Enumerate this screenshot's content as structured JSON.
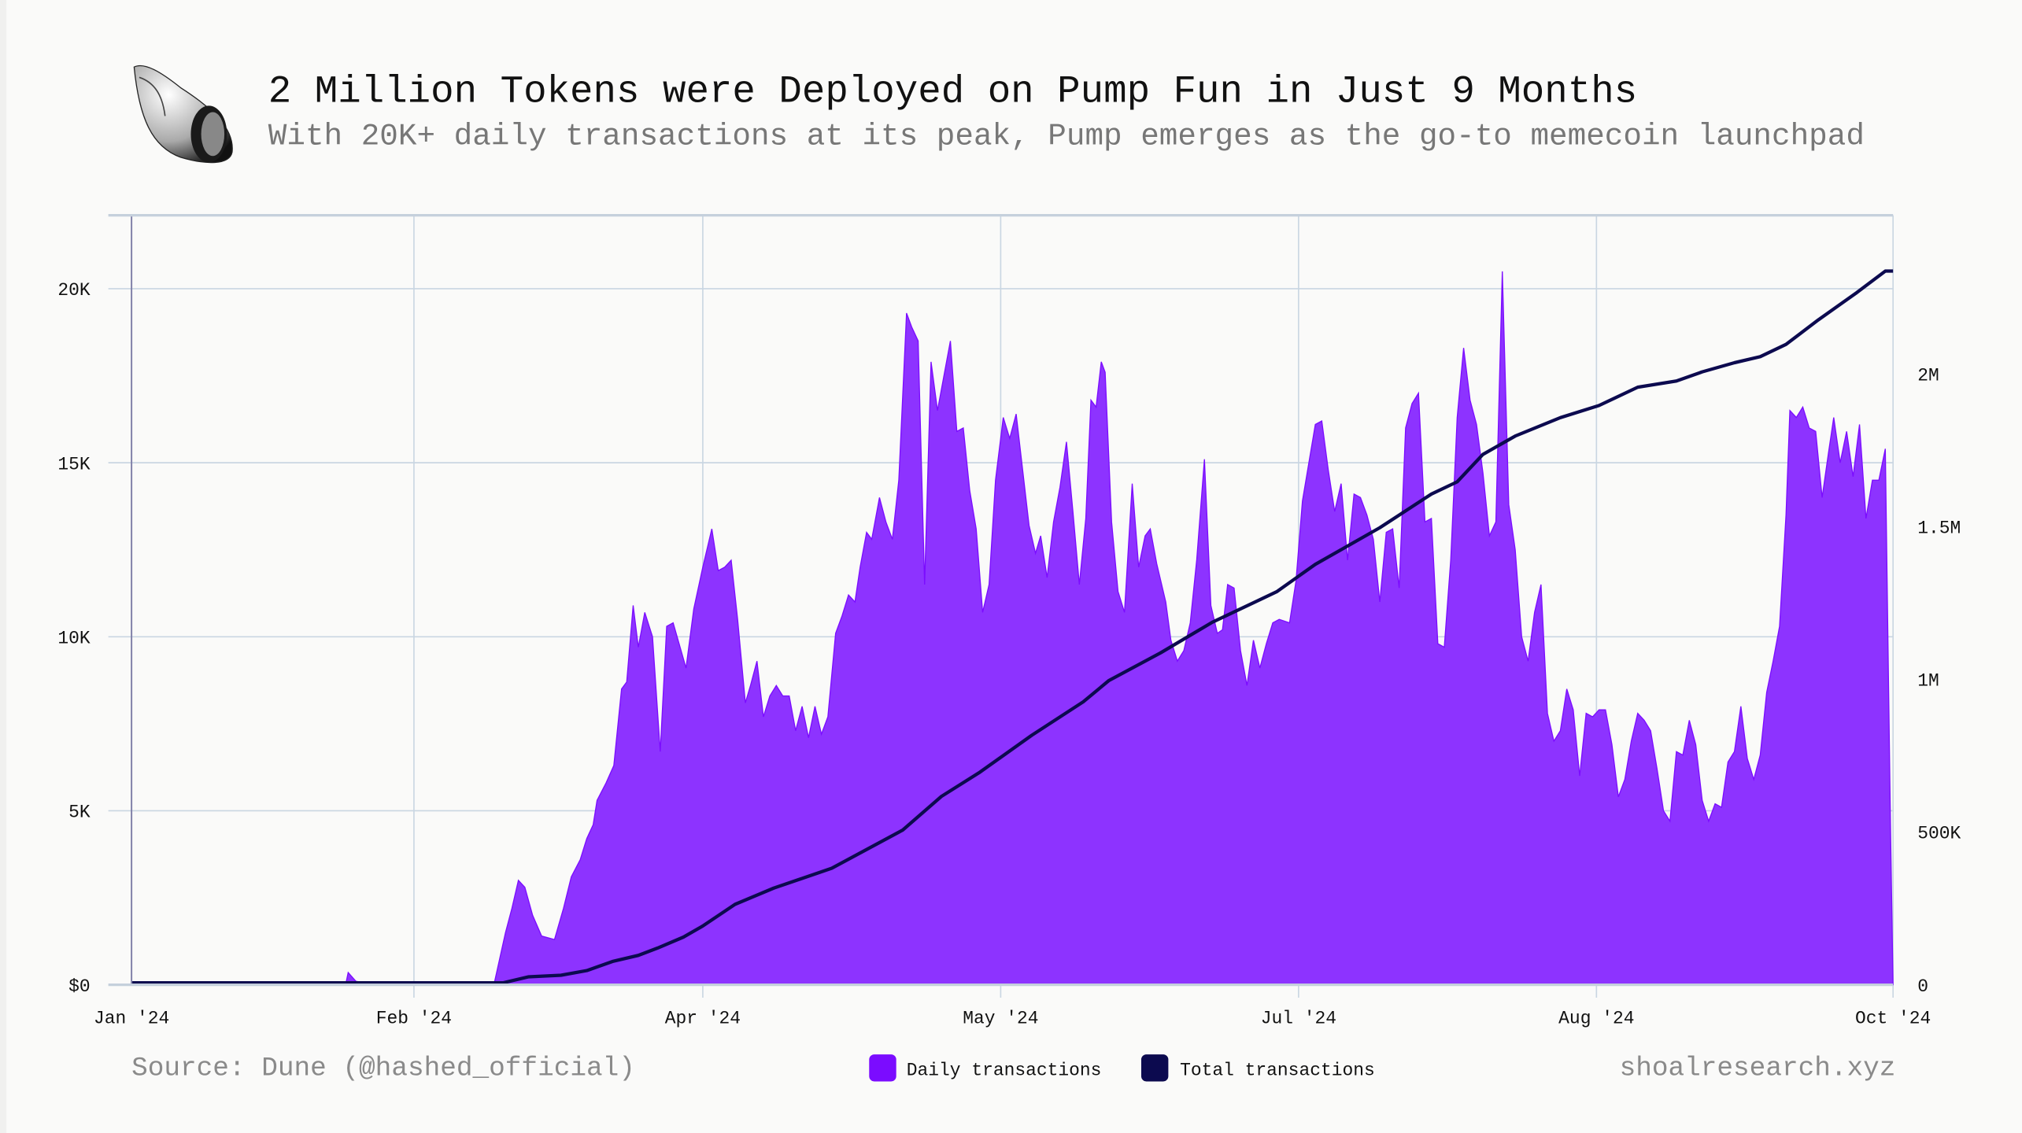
{
  "header": {
    "title": "2 Million Tokens were Deployed on Pump Fun in Just 9 Months",
    "subtitle": "With 20K+ daily transactions at its peak, Pump emerges as the go-to memecoin launchpad",
    "logo_icon": "seashell-icon"
  },
  "footer": {
    "source": "Source: Dune (@hashed_official)",
    "brand": "shoalresearch.xyz"
  },
  "chart_data": {
    "type": "area",
    "title": "2 Million Tokens were Deployed on Pump Fun in Just 9 Months",
    "x_unit": "days since Jan 1 2024",
    "xlim": [
      0,
      273.2
    ],
    "x_ticks": [
      {
        "label": "Jan '24",
        "day": 0
      },
      {
        "label": "Feb '24",
        "day": 43.8
      },
      {
        "label": "Apr '24",
        "day": 88.6
      },
      {
        "label": "May '24",
        "day": 134.8
      },
      {
        "label": "Jul '24",
        "day": 181
      },
      {
        "label": "Aug '24",
        "day": 227.2
      },
      {
        "label": "Oct '24",
        "day": 273.2
      }
    ],
    "y_left": {
      "ylim": [
        0,
        22
      ],
      "unit": "K",
      "ticks": [
        {
          "label": "$0",
          "value": 0
        },
        {
          "label": "5K",
          "value": 5
        },
        {
          "label": "10K",
          "value": 10
        },
        {
          "label": "15K",
          "value": 15
        },
        {
          "label": "20K",
          "value": 20
        }
      ]
    },
    "y_right": {
      "unit": "M",
      "ticks": [
        {
          "label": "0",
          "value": 0
        },
        {
          "label": "500K",
          "value": 0.5
        },
        {
          "label": "1M",
          "value": 1
        },
        {
          "label": "1.5M",
          "value": 1.5
        },
        {
          "label": "2M",
          "value": 2
        }
      ]
    },
    "legend": [
      {
        "label": "Daily transactions",
        "color": "#7b0cff"
      },
      {
        "label": "Total transactions",
        "color": "#0c0a4f"
      }
    ],
    "legend_position": "bottom-center",
    "grid": true,
    "series": [
      {
        "name": "Daily transactions",
        "axis": "left",
        "type": "area",
        "color": "#8d33ff",
        "points": [
          [
            0,
            0
          ],
          [
            33.2,
            0
          ],
          [
            33.6,
            0.35
          ],
          [
            34.8,
            0.1
          ],
          [
            37.6,
            0
          ],
          [
            56.2,
            0
          ],
          [
            56.8,
            0.5
          ],
          [
            58,
            1.5
          ],
          [
            59,
            2.2
          ],
          [
            60,
            3.0
          ],
          [
            61,
            2.8
          ],
          [
            62.2,
            2.0
          ],
          [
            63.6,
            1.4
          ],
          [
            65.6,
            1.3
          ],
          [
            67,
            2.2
          ],
          [
            68.2,
            3.1
          ],
          [
            69.6,
            3.6
          ],
          [
            70.6,
            4.2
          ],
          [
            71.6,
            4.6
          ],
          [
            72.2,
            5.3
          ],
          [
            73.6,
            5.8
          ],
          [
            74.8,
            6.3
          ],
          [
            76,
            8.5
          ],
          [
            76.8,
            8.7
          ],
          [
            77.8,
            10.9
          ],
          [
            78.6,
            9.7
          ],
          [
            79.6,
            10.7
          ],
          [
            80.8,
            10.0
          ],
          [
            82,
            6.7
          ],
          [
            83,
            10.3
          ],
          [
            84,
            10.4
          ],
          [
            86,
            9.1
          ],
          [
            87.2,
            10.8
          ],
          [
            88.6,
            12.0
          ],
          [
            90,
            13.1
          ],
          [
            91,
            11.9
          ],
          [
            92,
            12.0
          ],
          [
            93,
            12.2
          ],
          [
            94,
            10.5
          ],
          [
            95.2,
            8.1
          ],
          [
            96,
            8.6
          ],
          [
            97,
            9.3
          ],
          [
            98,
            7.7
          ],
          [
            99,
            8.3
          ],
          [
            100,
            8.6
          ],
          [
            101,
            8.3
          ],
          [
            102,
            8.3
          ],
          [
            103,
            7.3
          ],
          [
            104,
            8.0
          ],
          [
            105,
            7.1
          ],
          [
            106,
            8.0
          ],
          [
            107,
            7.2
          ],
          [
            108,
            7.7
          ],
          [
            109.2,
            10.1
          ],
          [
            110.2,
            10.6
          ],
          [
            111.2,
            11.2
          ],
          [
            112.2,
            11.0
          ],
          [
            113,
            12.0
          ],
          [
            114,
            13.0
          ],
          [
            114.8,
            12.8
          ],
          [
            116,
            14.0
          ],
          [
            117,
            13.3
          ],
          [
            118,
            12.8
          ],
          [
            119,
            14.5
          ],
          [
            120.2,
            19.3
          ],
          [
            121,
            18.9
          ],
          [
            122,
            18.5
          ],
          [
            123,
            11.5
          ],
          [
            124,
            17.9
          ],
          [
            125,
            16.5
          ],
          [
            126,
            17.5
          ],
          [
            127,
            18.5
          ],
          [
            128,
            15.9
          ],
          [
            129,
            16.0
          ],
          [
            130,
            14.2
          ],
          [
            131,
            13.1
          ],
          [
            132,
            10.7
          ],
          [
            133,
            11.5
          ],
          [
            134,
            14.5
          ],
          [
            135.2,
            16.3
          ],
          [
            136.2,
            15.7
          ],
          [
            137.2,
            16.4
          ],
          [
            138.2,
            14.8
          ],
          [
            139.2,
            13.2
          ],
          [
            140.2,
            12.4
          ],
          [
            141,
            12.9
          ],
          [
            142,
            11.7
          ],
          [
            143,
            13.3
          ],
          [
            144,
            14.3
          ],
          [
            145,
            15.6
          ],
          [
            146,
            13.6
          ],
          [
            147,
            11.5
          ],
          [
            148,
            13.4
          ],
          [
            148.8,
            16.8
          ],
          [
            149.6,
            16.6
          ],
          [
            150.4,
            17.9
          ],
          [
            151,
            17.6
          ],
          [
            152,
            13.3
          ],
          [
            153,
            11.3
          ],
          [
            154,
            10.7
          ],
          [
            155.2,
            14.4
          ],
          [
            156.2,
            12.0
          ],
          [
            157.2,
            12.9
          ],
          [
            158,
            13.1
          ],
          [
            159,
            12.1
          ],
          [
            160.4,
            11.0
          ],
          [
            161.2,
            9.9
          ],
          [
            162.2,
            9.3
          ],
          [
            163.2,
            9.6
          ],
          [
            164.2,
            10.4
          ],
          [
            165.2,
            12.2
          ],
          [
            166.4,
            15.1
          ],
          [
            167.4,
            10.9
          ],
          [
            168.4,
            10.1
          ],
          [
            169.2,
            10.2
          ],
          [
            170,
            11.5
          ],
          [
            171,
            11.4
          ],
          [
            172,
            9.6
          ],
          [
            173,
            8.6
          ],
          [
            174,
            9.9
          ],
          [
            175,
            9.1
          ],
          [
            176,
            9.8
          ],
          [
            177,
            10.4
          ],
          [
            178,
            10.5
          ],
          [
            179.6,
            10.4
          ],
          [
            180.6,
            11.6
          ],
          [
            181.6,
            13.9
          ],
          [
            182.6,
            15.0
          ],
          [
            183.6,
            16.1
          ],
          [
            184.6,
            16.2
          ],
          [
            185.6,
            14.8
          ],
          [
            186.6,
            13.6
          ],
          [
            187.6,
            14.4
          ],
          [
            188.6,
            12.2
          ],
          [
            189.6,
            14.1
          ],
          [
            190.6,
            14.0
          ],
          [
            191.6,
            13.5
          ],
          [
            192.6,
            12.8
          ],
          [
            193.6,
            11.0
          ],
          [
            194.6,
            13.0
          ],
          [
            195.6,
            13.1
          ],
          [
            196.6,
            11.4
          ],
          [
            197.6,
            16.0
          ],
          [
            198.6,
            16.7
          ],
          [
            199.6,
            17.0
          ],
          [
            200.6,
            13.3
          ],
          [
            201.6,
            13.4
          ],
          [
            202.6,
            9.8
          ],
          [
            203.6,
            9.7
          ],
          [
            204.6,
            12.2
          ],
          [
            205.6,
            16.3
          ],
          [
            206.6,
            18.3
          ],
          [
            207.6,
            16.8
          ],
          [
            208.6,
            16.1
          ],
          [
            209.6,
            14.7
          ],
          [
            210.6,
            12.9
          ],
          [
            211.6,
            13.3
          ],
          [
            212.6,
            20.5
          ],
          [
            213.6,
            13.8
          ],
          [
            214.6,
            12.5
          ],
          [
            215.6,
            10.0
          ],
          [
            216.6,
            9.3
          ],
          [
            217.6,
            10.7
          ],
          [
            218.6,
            11.5
          ],
          [
            219.6,
            7.8
          ],
          [
            220.6,
            7.0
          ],
          [
            221.6,
            7.3
          ],
          [
            222.6,
            8.5
          ],
          [
            223.6,
            7.9
          ],
          [
            224.6,
            6.0
          ],
          [
            225.6,
            7.8
          ],
          [
            226.6,
            7.7
          ],
          [
            227.6,
            7.9
          ],
          [
            228.6,
            7.9
          ],
          [
            229.6,
            6.9
          ],
          [
            230.6,
            5.4
          ],
          [
            231.6,
            5.9
          ],
          [
            232.6,
            7.0
          ],
          [
            233.6,
            7.8
          ],
          [
            234.6,
            7.6
          ],
          [
            235.6,
            7.3
          ],
          [
            236.6,
            6.2
          ],
          [
            237.6,
            5.0
          ],
          [
            238.6,
            4.7
          ],
          [
            239.6,
            6.7
          ],
          [
            240.6,
            6.6
          ],
          [
            241.6,
            7.6
          ],
          [
            242.6,
            6.9
          ],
          [
            243.6,
            5.3
          ],
          [
            244.6,
            4.7
          ],
          [
            245.6,
            5.2
          ],
          [
            246.6,
            5.1
          ],
          [
            247.6,
            6.4
          ],
          [
            248.6,
            6.7
          ],
          [
            249.6,
            8.0
          ],
          [
            250.6,
            6.5
          ],
          [
            251.6,
            5.9
          ],
          [
            252.6,
            6.6
          ],
          [
            253.6,
            8.4
          ],
          [
            254.6,
            9.3
          ],
          [
            255.6,
            10.3
          ],
          [
            256.6,
            13.5
          ],
          [
            257.2,
            16.5
          ],
          [
            258.2,
            16.3
          ],
          [
            259.2,
            16.6
          ],
          [
            260.2,
            16.0
          ],
          [
            261.2,
            15.9
          ],
          [
            262.2,
            14.0
          ],
          [
            263.2,
            15.3
          ],
          [
            264,
            16.3
          ],
          [
            265,
            15.0
          ],
          [
            266,
            15.9
          ],
          [
            267,
            14.6
          ],
          [
            268,
            16.1
          ],
          [
            269,
            13.4
          ],
          [
            270,
            14.5
          ],
          [
            271,
            14.5
          ],
          [
            272,
            15.4
          ],
          [
            272.8,
            4.6
          ],
          [
            273.2,
            0
          ]
        ]
      },
      {
        "name": "Total transactions",
        "axis": "right",
        "type": "line",
        "color": "#0c0a4f",
        "points": [
          [
            0,
            0
          ],
          [
            57.6,
            0
          ],
          [
            61.6,
            0.02
          ],
          [
            66.6,
            0.025
          ],
          [
            70.6,
            0.04
          ],
          [
            74.6,
            0.07
          ],
          [
            78.6,
            0.09
          ],
          [
            81.6,
            0.114
          ],
          [
            85.6,
            0.15
          ],
          [
            88.6,
            0.186
          ],
          [
            93.6,
            0.257
          ],
          [
            99.6,
            0.31
          ],
          [
            108.6,
            0.375
          ],
          [
            119.6,
            0.5
          ],
          [
            125.6,
            0.61
          ],
          [
            131.6,
            0.69
          ],
          [
            139.6,
            0.81
          ],
          [
            147.6,
            0.92
          ],
          [
            151.6,
            0.99
          ],
          [
            159.6,
            1.08
          ],
          [
            167.6,
            1.18
          ],
          [
            177.6,
            1.28
          ],
          [
            183.6,
            1.37
          ],
          [
            193.6,
            1.49
          ],
          [
            201.6,
            1.6
          ],
          [
            205.6,
            1.64
          ],
          [
            209.6,
            1.73
          ],
          [
            214.6,
            1.79
          ],
          [
            221.6,
            1.85
          ],
          [
            227.6,
            1.89
          ],
          [
            233.6,
            1.95
          ],
          [
            239.6,
            1.97
          ],
          [
            243.6,
            2.0
          ],
          [
            248.6,
            2.03
          ],
          [
            252.6,
            2.05
          ],
          [
            256.6,
            2.09
          ],
          [
            261.6,
            2.17
          ],
          [
            267.6,
            2.26
          ],
          [
            272,
            2.33
          ],
          [
            273.2,
            2.33
          ]
        ]
      }
    ]
  }
}
